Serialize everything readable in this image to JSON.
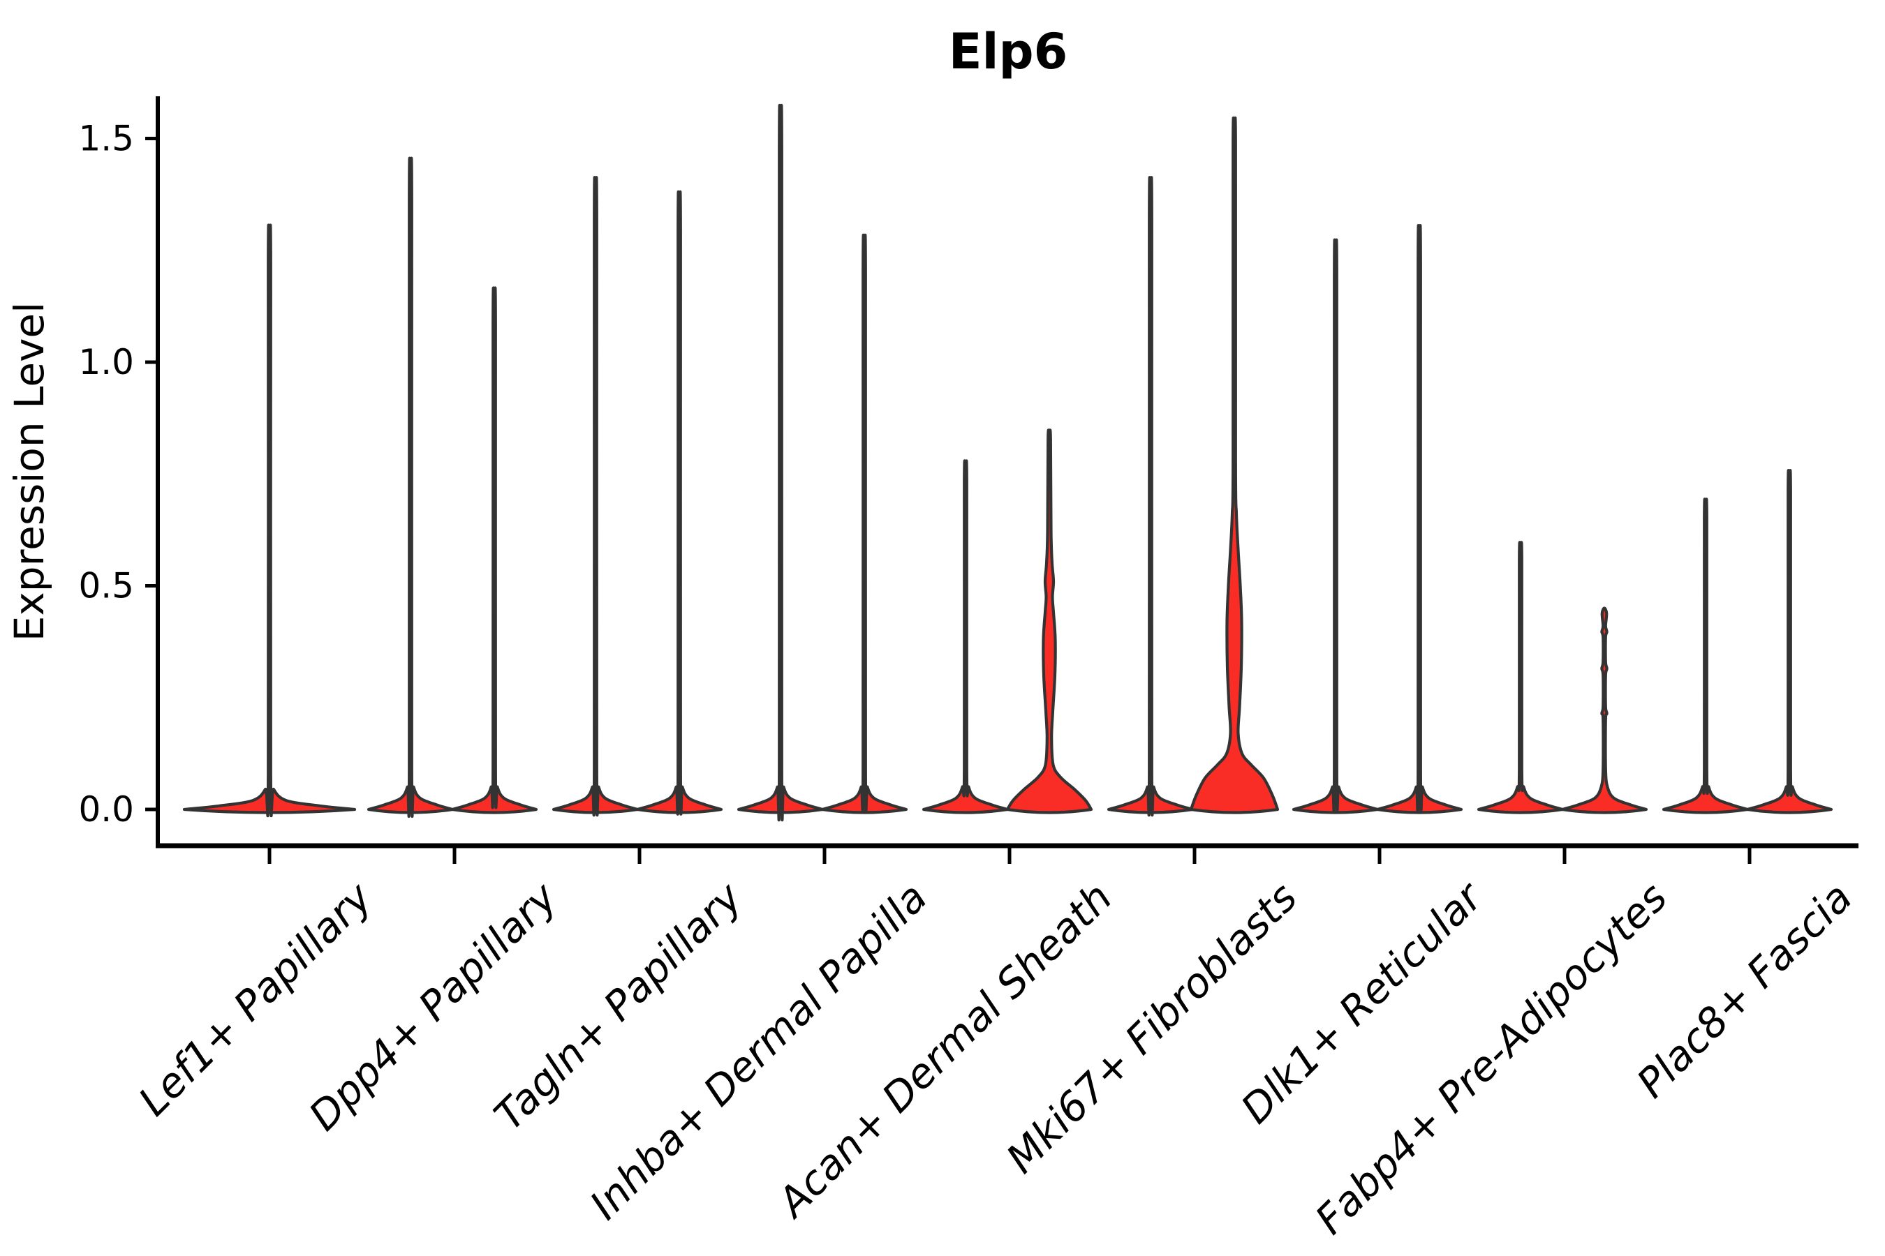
{
  "chart_data": {
    "type": "violin",
    "title": "Elp6",
    "ylabel": "Expression Level",
    "xlabel": "",
    "ylim": [
      0,
      1.5
    ],
    "ytick_values": [
      0,
      0.5,
      1.0,
      1.5
    ],
    "ytick_labels": [
      "0.0",
      "0.5",
      "1.0",
      "1.5"
    ],
    "categories": [
      "Lef1+ Papillary",
      "Dpp4+ Papillary",
      "Tagln+ Papillary",
      "Inhba+ Dermal Papilla",
      "Acan+ Dermal Sheath",
      "Mki67+ Fibroblasts",
      "Dlk1+ Reticular",
      "Fabp4+ Pre-Adipocytes",
      "Plac8+ Fascia"
    ],
    "grid": false,
    "legend": null,
    "colors": {
      "violin_fill": "#FA2D26",
      "violin_outline": "#333333",
      "axis": "#000000",
      "background": "#FFFFFF"
    },
    "profile_format": "each point is [expression_value, half_width_px]",
    "violins": [
      {
        "category_index": 0,
        "category": "Lef1+ Papillary",
        "slot": "center",
        "max_expression": 1.23,
        "density_profile": [
          [
            0,
            122
          ],
          [
            0.008,
            72
          ],
          [
            0.02,
            24
          ],
          [
            0.045,
            6
          ],
          [
            0.08,
            1.8
          ],
          [
            1.218,
            1.8
          ],
          [
            1.23,
            0
          ]
        ]
      },
      {
        "category_index": 1,
        "category": "Dpp4+ Papillary",
        "slot": "left",
        "max_expression": 1.37,
        "density_profile": [
          [
            0,
            60
          ],
          [
            0.01,
            38
          ],
          [
            0.025,
            14
          ],
          [
            0.05,
            4.5
          ],
          [
            0.09,
            1.8
          ],
          [
            1.358,
            1.8
          ],
          [
            1.37,
            0
          ]
        ]
      },
      {
        "category_index": 1,
        "category": "Dpp4+ Papillary",
        "slot": "right",
        "max_expression": 1.1,
        "density_profile": [
          [
            0,
            60
          ],
          [
            0.01,
            38
          ],
          [
            0.025,
            14
          ],
          [
            0.05,
            4.5
          ],
          [
            0.09,
            1.8
          ],
          [
            1.088,
            1.8
          ],
          [
            1.1,
            0
          ]
        ]
      },
      {
        "category_index": 2,
        "category": "Tagln+ Papillary",
        "slot": "left",
        "max_expression": 1.33,
        "density_profile": [
          [
            0,
            60
          ],
          [
            0.01,
            38
          ],
          [
            0.025,
            14
          ],
          [
            0.05,
            4.5
          ],
          [
            0.09,
            1.8
          ],
          [
            1.318,
            1.8
          ],
          [
            1.33,
            0
          ]
        ]
      },
      {
        "category_index": 2,
        "category": "Tagln+ Papillary",
        "slot": "right",
        "max_expression": 1.3,
        "density_profile": [
          [
            0,
            60
          ],
          [
            0.01,
            38
          ],
          [
            0.025,
            14
          ],
          [
            0.05,
            4.5
          ],
          [
            0.09,
            1.8
          ],
          [
            1.288,
            1.8
          ],
          [
            1.3,
            0
          ]
        ]
      },
      {
        "category_index": 3,
        "category": "Inhba+ Dermal Papilla",
        "slot": "left",
        "max_expression": 1.48,
        "density_profile": [
          [
            0,
            60
          ],
          [
            0.01,
            38
          ],
          [
            0.025,
            14
          ],
          [
            0.05,
            4.5
          ],
          [
            0.09,
            1.8
          ],
          [
            1.468,
            1.8
          ],
          [
            1.48,
            0
          ]
        ]
      },
      {
        "category_index": 3,
        "category": "Inhba+ Dermal Papilla",
        "slot": "right",
        "max_expression": 1.21,
        "density_profile": [
          [
            0,
            60
          ],
          [
            0.01,
            38
          ],
          [
            0.025,
            14
          ],
          [
            0.05,
            4.5
          ],
          [
            0.09,
            1.8
          ],
          [
            1.198,
            1.8
          ],
          [
            1.21,
            0
          ]
        ]
      },
      {
        "category_index": 4,
        "category": "Acan+ Dermal Sheath",
        "slot": "left",
        "max_expression": 0.74,
        "density_profile": [
          [
            0,
            60
          ],
          [
            0.01,
            38
          ],
          [
            0.025,
            14
          ],
          [
            0.05,
            4.5
          ],
          [
            0.09,
            1.8
          ],
          [
            0.728,
            1.8
          ],
          [
            0.74,
            0
          ]
        ]
      },
      {
        "category_index": 4,
        "category": "Acan+ Dermal Sheath",
        "slot": "right",
        "max_expression": 0.84,
        "density_profile": [
          [
            0,
            60
          ],
          [
            0.02,
            52
          ],
          [
            0.045,
            36
          ],
          [
            0.072,
            16
          ],
          [
            0.1,
            5.5
          ],
          [
            0.16,
            3.2
          ],
          [
            0.22,
            5
          ],
          [
            0.3,
            8
          ],
          [
            0.38,
            8.5
          ],
          [
            0.44,
            6
          ],
          [
            0.475,
            4.5
          ],
          [
            0.51,
            6
          ],
          [
            0.55,
            4
          ],
          [
            0.62,
            2.5
          ],
          [
            0.828,
            1.8
          ],
          [
            0.84,
            0
          ]
        ]
      },
      {
        "category_index": 5,
        "category": "Mki67+ Fibroblasts",
        "slot": "left",
        "max_expression": 1.33,
        "density_profile": [
          [
            0,
            60
          ],
          [
            0.01,
            38
          ],
          [
            0.025,
            14
          ],
          [
            0.05,
            4.5
          ],
          [
            0.09,
            1.8
          ],
          [
            1.318,
            1.8
          ],
          [
            1.33,
            0
          ]
        ]
      },
      {
        "category_index": 5,
        "category": "Mki67+ Fibroblasts",
        "slot": "right",
        "max_expression": 1.5,
        "density_profile": [
          [
            0,
            62
          ],
          [
            0.03,
            55
          ],
          [
            0.07,
            42
          ],
          [
            0.1,
            24
          ],
          [
            0.125,
            11
          ],
          [
            0.17,
            5.5
          ],
          [
            0.23,
            7.5
          ],
          [
            0.32,
            10
          ],
          [
            0.42,
            10.5
          ],
          [
            0.5,
            8.5
          ],
          [
            0.58,
            5.5
          ],
          [
            0.66,
            3
          ],
          [
            0.78,
            1.8
          ],
          [
            1.49,
            1.8
          ],
          [
            1.5,
            0
          ]
        ]
      },
      {
        "category_index": 6,
        "category": "Dlk1+ Reticular",
        "slot": "left",
        "max_expression": 1.2,
        "density_profile": [
          [
            0,
            60
          ],
          [
            0.01,
            38
          ],
          [
            0.025,
            14
          ],
          [
            0.05,
            4.5
          ],
          [
            0.09,
            1.8
          ],
          [
            1.188,
            1.8
          ],
          [
            1.2,
            0
          ]
        ]
      },
      {
        "category_index": 6,
        "category": "Dlk1+ Reticular",
        "slot": "right",
        "max_expression": 1.23,
        "density_profile": [
          [
            0,
            60
          ],
          [
            0.01,
            38
          ],
          [
            0.025,
            14
          ],
          [
            0.05,
            4.5
          ],
          [
            0.09,
            1.8
          ],
          [
            1.218,
            1.8
          ],
          [
            1.23,
            0
          ]
        ]
      },
      {
        "category_index": 7,
        "category": "Fabp4+ Pre-Adipocytes",
        "slot": "left",
        "max_expression": 0.57,
        "density_profile": [
          [
            0,
            60
          ],
          [
            0.01,
            38
          ],
          [
            0.025,
            14
          ],
          [
            0.05,
            4.5
          ],
          [
            0.09,
            1.8
          ],
          [
            0.558,
            1.8
          ],
          [
            0.57,
            0
          ]
        ]
      },
      {
        "category_index": 7,
        "category": "Fabp4+ Pre-Adipocytes",
        "slot": "right",
        "max_expression": 0.45,
        "density_profile": [
          [
            0,
            60
          ],
          [
            0.01,
            38
          ],
          [
            0.025,
            14
          ],
          [
            0.05,
            4.5
          ],
          [
            0.09,
            1.8
          ],
          [
            0.2,
            1.8
          ],
          [
            0.215,
            3.6
          ],
          [
            0.23,
            1.8
          ],
          [
            0.3,
            1.8
          ],
          [
            0.315,
            3.6
          ],
          [
            0.33,
            1.8
          ],
          [
            0.385,
            1.8
          ],
          [
            0.397,
            3.6
          ],
          [
            0.41,
            1.8
          ],
          [
            0.438,
            3.2
          ],
          [
            0.45,
            0
          ]
        ]
      },
      {
        "category_index": 8,
        "category": "Plac8+ Fascia",
        "slot": "left",
        "max_expression": 0.66,
        "density_profile": [
          [
            0,
            60
          ],
          [
            0.01,
            38
          ],
          [
            0.025,
            14
          ],
          [
            0.05,
            4.5
          ],
          [
            0.09,
            1.8
          ],
          [
            0.648,
            1.8
          ],
          [
            0.66,
            0
          ]
        ]
      },
      {
        "category_index": 8,
        "category": "Plac8+ Fascia",
        "slot": "right",
        "max_expression": 0.72,
        "density_profile": [
          [
            0,
            60
          ],
          [
            0.01,
            38
          ],
          [
            0.025,
            14
          ],
          [
            0.05,
            4.5
          ],
          [
            0.09,
            1.8
          ],
          [
            0.708,
            1.8
          ],
          [
            0.72,
            0
          ]
        ]
      }
    ]
  }
}
